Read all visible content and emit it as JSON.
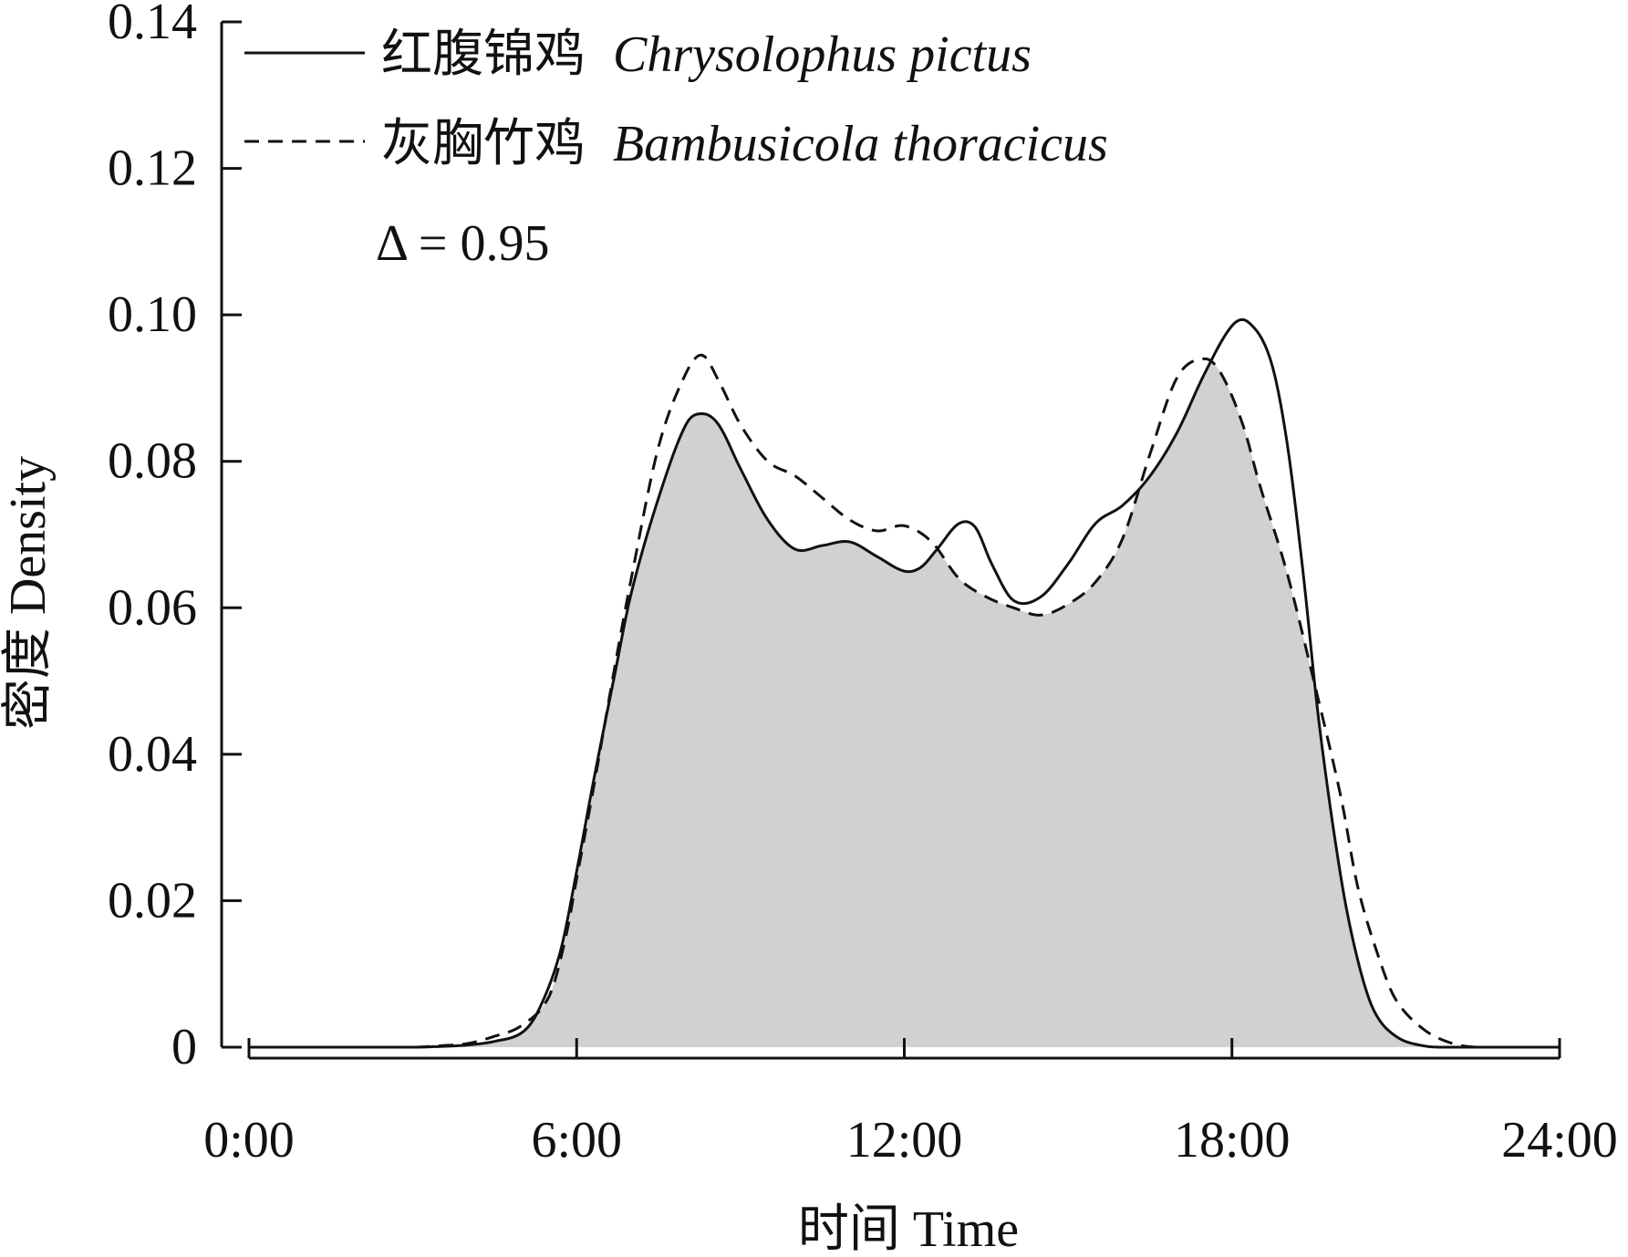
{
  "chart_data": {
    "type": "area",
    "title": "",
    "xlabel": "时间 Time",
    "ylabel": "密度 Density",
    "xlim": [
      0,
      24
    ],
    "ylim": [
      0,
      0.14
    ],
    "grid": false,
    "legend_position": "top-left",
    "x_ticks": [
      {
        "value": 0,
        "label": "0:00"
      },
      {
        "value": 6,
        "label": "6:00"
      },
      {
        "value": 12,
        "label": "12:00"
      },
      {
        "value": 18,
        "label": "18:00"
      },
      {
        "value": 24,
        "label": "24:00"
      }
    ],
    "y_ticks": [
      {
        "value": 0,
        "label": "0"
      },
      {
        "value": 0.02,
        "label": "0.02"
      },
      {
        "value": 0.04,
        "label": "0.04"
      },
      {
        "value": 0.06,
        "label": "0.06"
      },
      {
        "value": 0.08,
        "label": "0.08"
      },
      {
        "value": 0.1,
        "label": "0.10"
      },
      {
        "value": 0.12,
        "label": "0.12"
      },
      {
        "value": 0.14,
        "label": "0.14"
      }
    ],
    "series": [
      {
        "name": "红腹锦鸡",
        "scientific_name": "Chrysolophus pictus",
        "line_style": "solid",
        "x": [
          0,
          3,
          3.5,
          4,
          4.5,
          5,
          5.3,
          5.7,
          6,
          6.3,
          6.7,
          7,
          7.5,
          8,
          8.3,
          8.6,
          9,
          9.5,
          10,
          10.5,
          11,
          11.5,
          12,
          12.3,
          12.6,
          13,
          13.3,
          13.6,
          14,
          14.5,
          15,
          15.5,
          16,
          16.5,
          17,
          17.5,
          18,
          18.3,
          18.7,
          19,
          19.3,
          19.6,
          20,
          20.3,
          20.6,
          21,
          21.5,
          22,
          24
        ],
        "y": [
          0,
          0,
          0.0001,
          0.0003,
          0.0008,
          0.002,
          0.005,
          0.013,
          0.024,
          0.036,
          0.051,
          0.062,
          0.075,
          0.085,
          0.0865,
          0.085,
          0.079,
          0.072,
          0.068,
          0.0685,
          0.069,
          0.067,
          0.065,
          0.0655,
          0.068,
          0.0715,
          0.071,
          0.066,
          0.061,
          0.0615,
          0.066,
          0.0715,
          0.074,
          0.078,
          0.084,
          0.092,
          0.0985,
          0.099,
          0.094,
          0.083,
          0.065,
          0.044,
          0.023,
          0.012,
          0.005,
          0.0015,
          0.0002,
          0,
          0
        ]
      },
      {
        "name": "灰胸竹鸡",
        "scientific_name": "Bambusicola thoracicus",
        "line_style": "dashed",
        "x": [
          0,
          3,
          3.5,
          4,
          4.5,
          5,
          5.5,
          5.8,
          6,
          6.3,
          6.7,
          7,
          7.5,
          8,
          8.3,
          8.6,
          9,
          9.5,
          10,
          10.5,
          11,
          11.5,
          12,
          12.5,
          13,
          13.5,
          14,
          14.5,
          15,
          15.5,
          16,
          16.5,
          17,
          17.5,
          17.8,
          18.2,
          18.5,
          19,
          19.5,
          20,
          20.3,
          20.7,
          21,
          21.5,
          22,
          22.5,
          24
        ],
        "y": [
          0,
          0,
          0.0002,
          0.0005,
          0.0015,
          0.003,
          0.007,
          0.015,
          0.023,
          0.035,
          0.052,
          0.064,
          0.082,
          0.092,
          0.0945,
          0.091,
          0.085,
          0.08,
          0.078,
          0.075,
          0.072,
          0.0705,
          0.0712,
          0.069,
          0.064,
          0.0615,
          0.06,
          0.059,
          0.0605,
          0.0635,
          0.0695,
          0.081,
          0.0915,
          0.094,
          0.092,
          0.085,
          0.077,
          0.065,
          0.05,
          0.034,
          0.022,
          0.012,
          0.0065,
          0.0025,
          0.0006,
          0,
          0
        ]
      }
    ],
    "overlap_fill_color": "#d1d1d4",
    "annotation": "Δ = 0.95"
  }
}
